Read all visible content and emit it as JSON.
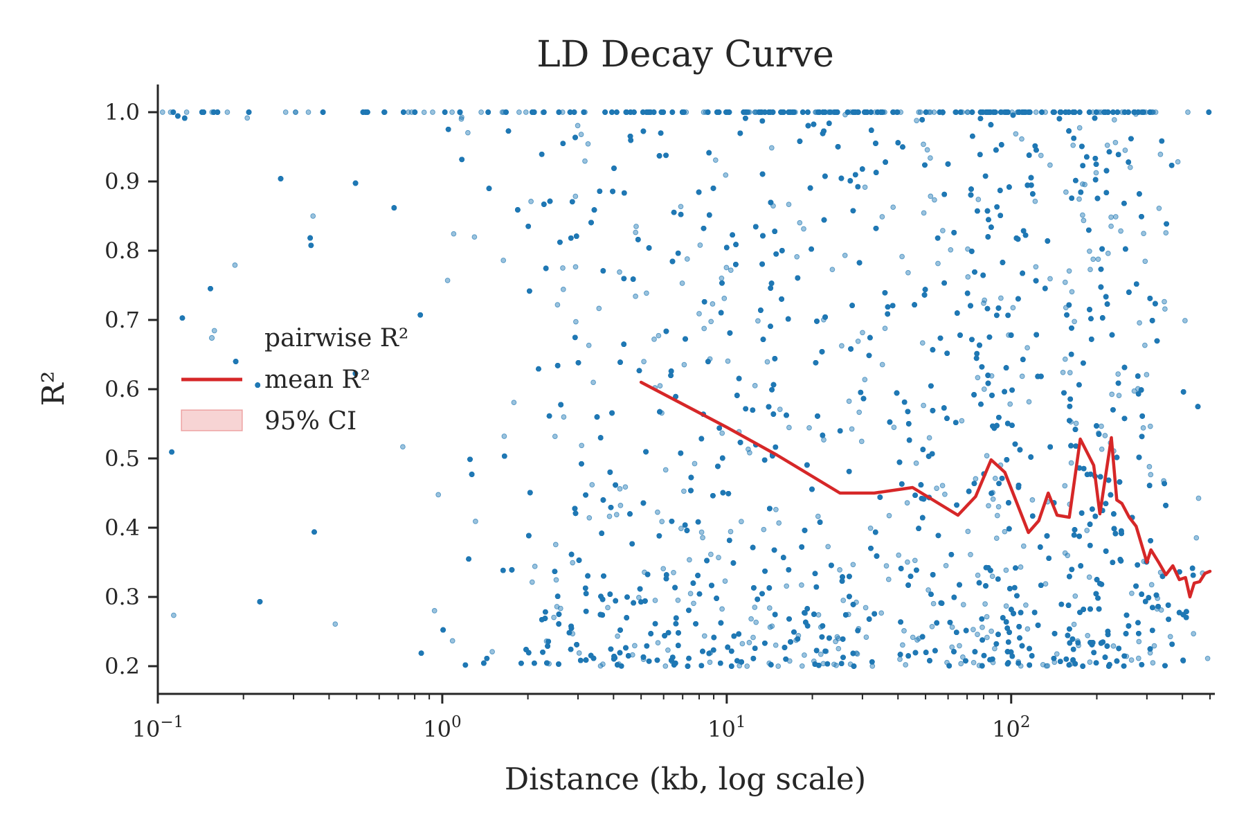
{
  "chart_data": {
    "type": "scatter",
    "title": "LD Decay Curve",
    "xlabel": "Distance (kb, log scale)",
    "ylabel": "R²",
    "xscale": "log",
    "xlim": [
      0.1,
      520
    ],
    "ylim": [
      0.16,
      1.04
    ],
    "x_ticks": [
      {
        "value": 0.1,
        "base": "10",
        "exp": "−1"
      },
      {
        "value": 1,
        "base": "10",
        "exp": "0"
      },
      {
        "value": 10,
        "base": "10",
        "exp": "1"
      },
      {
        "value": 100,
        "base": "10",
        "exp": "2"
      }
    ],
    "y_ticks": [
      0.2,
      0.3,
      0.4,
      0.5,
      0.6,
      0.7,
      0.8,
      0.9,
      1.0
    ],
    "y_tick_labels": [
      "0.2",
      "0.3",
      "0.4",
      "0.5",
      "0.6",
      "0.7",
      "0.8",
      "0.9",
      "1.0"
    ],
    "grid": false,
    "legend_position": "center-left",
    "series": [
      {
        "name": "pairwise R²",
        "kind": "scatter",
        "color": "#1f77b4",
        "x_range": [
          0.1,
          500
        ],
        "y_range": [
          0.2,
          1.0
        ],
        "density_note": "sparse below 2 kb, very dense above 3 kb, dense vertical bands near 90 kb and 170–230 kb"
      },
      {
        "name": "mean R²",
        "kind": "line",
        "color": "#d62728",
        "x": [
          5,
          10,
          15,
          25,
          33,
          45,
          65,
          75,
          85,
          95,
          115,
          125,
          135,
          145,
          160,
          175,
          195,
          205,
          225,
          235,
          245,
          260,
          275,
          300,
          310,
          330,
          350,
          370,
          390,
          410,
          425,
          440,
          460,
          480,
          500
        ],
        "y": [
          0.61,
          0.545,
          0.505,
          0.45,
          0.45,
          0.458,
          0.418,
          0.445,
          0.498,
          0.48,
          0.393,
          0.41,
          0.45,
          0.418,
          0.415,
          0.528,
          0.49,
          0.42,
          0.53,
          0.44,
          0.435,
          0.415,
          0.402,
          0.35,
          0.368,
          0.35,
          0.332,
          0.345,
          0.325,
          0.328,
          0.3,
          0.32,
          0.322,
          0.334,
          0.337
        ]
      },
      {
        "name": "95% CI",
        "kind": "band",
        "color": "#d62728"
      }
    ]
  }
}
